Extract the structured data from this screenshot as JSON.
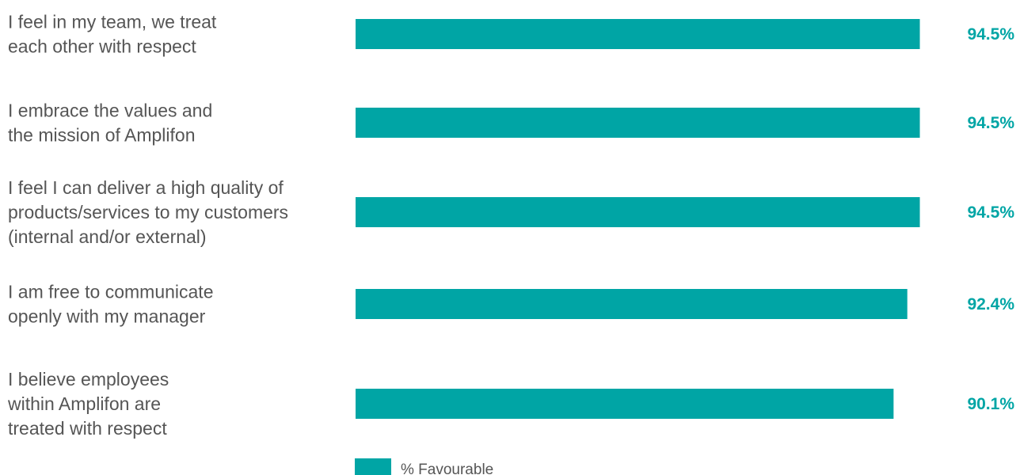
{
  "chart_data": {
    "type": "bar",
    "orientation": "horizontal",
    "categories": [
      [
        "I feel in my team, we treat",
        "each other with respect"
      ],
      [
        "I embrace the values and",
        "the mission of Amplifon"
      ],
      [
        "I feel I can deliver a high quality of",
        "products/services to my customers",
        "(internal and/or external)"
      ],
      [
        "I am free to communicate",
        "openly with my manager"
      ],
      [
        "I believe employees",
        "within Amplifon are",
        "treated with respect"
      ]
    ],
    "series": [
      {
        "name": "% Favourable",
        "values": [
          94.5,
          94.5,
          94.5,
          92.4,
          90.1
        ],
        "labels": [
          "94.5%",
          "94.5%",
          "94.5%",
          "92.4%",
          "90.1%"
        ]
      }
    ],
    "xlim": [
      0,
      100
    ],
    "grid": false,
    "legend_position": "bottom",
    "colors": {
      "bar": "#00A5A5",
      "value_text": "#00A5A5",
      "label_text": "#555555"
    }
  }
}
